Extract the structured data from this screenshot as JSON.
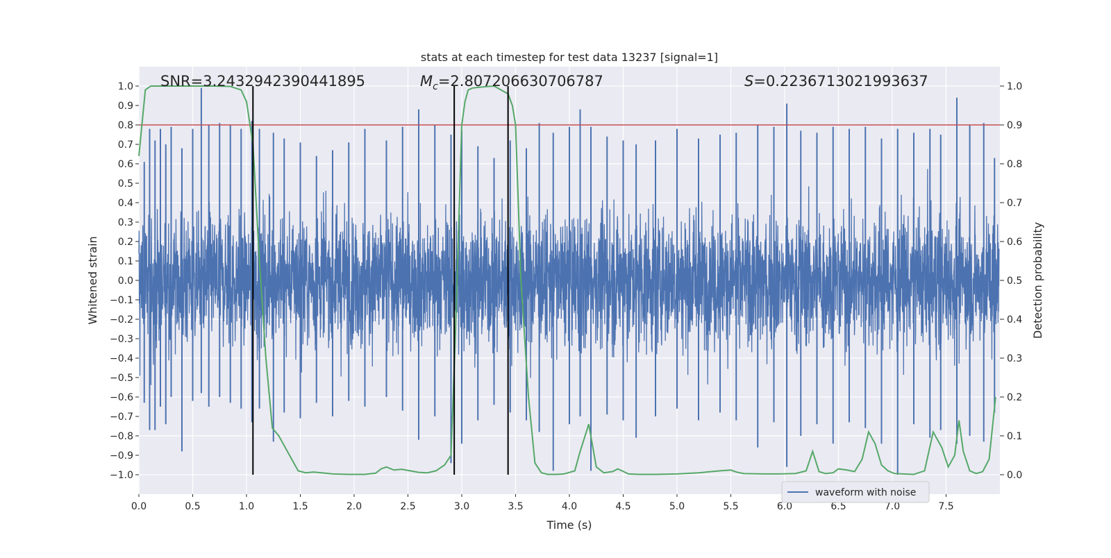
{
  "chart_data": {
    "type": "line",
    "title": "stats at each timestep for test data 13237 [signal=1]",
    "xlabel": "Time (s)",
    "ylabel_left": "Whitened strain",
    "ylabel_right": "Detection probability",
    "xlim": [
      0.0,
      8.0
    ],
    "ylim_left": [
      -1.1,
      1.1
    ],
    "ylim_right": [
      -0.05,
      1.05
    ],
    "x_ticks": [
      0.0,
      0.5,
      1.0,
      1.5,
      2.0,
      2.5,
      3.0,
      3.5,
      4.0,
      4.5,
      5.0,
      5.5,
      6.0,
      6.5,
      7.0,
      7.5
    ],
    "x_tick_labels": [
      "0.0",
      "0.5",
      "1.0",
      "1.5",
      "2.0",
      "2.5",
      "3.0",
      "3.5",
      "4.0",
      "4.5",
      "5.0",
      "5.5",
      "6.0",
      "6.5",
      "7.0",
      "7.5"
    ],
    "y_left_ticks": [
      1.0,
      0.9,
      0.8,
      0.7,
      0.6,
      0.5,
      0.4,
      0.3,
      0.2,
      0.1,
      0.0,
      -0.1,
      -0.2,
      -0.3,
      -0.4,
      -0.5,
      -0.6,
      -0.7,
      -0.8,
      -0.9,
      -1.0
    ],
    "y_left_tick_labels": [
      "1.0",
      "0.9",
      "0.8",
      "0.7",
      "0.6",
      "0.5",
      "0.4",
      "0.3",
      "0.2",
      "0.1",
      "0.0",
      "−0.1",
      "−0.2",
      "−0.3",
      "−0.4",
      "−0.5",
      "−0.6",
      "−0.7",
      "−0.8",
      "−0.9",
      "−1.0"
    ],
    "y_right_ticks": [
      1.0,
      0.9,
      0.8,
      0.7,
      0.6,
      0.5,
      0.4,
      0.3,
      0.2,
      0.1,
      0.0
    ],
    "y_right_tick_labels": [
      "1.0",
      "0.9",
      "0.8",
      "0.7",
      "0.6",
      "0.5",
      "0.4",
      "0.3",
      "0.2",
      "0.1",
      "0.0"
    ],
    "annotations": {
      "snr": "SNR=3.2432942390441895",
      "mc_symbol": "M",
      "mc_subscript": "c",
      "mc_value": "=2.807206630706787",
      "s_symbol": "S",
      "s_value": "=0.2236713021993637"
    },
    "threshold": {
      "axis": "right",
      "value": 0.9,
      "color": "#c44e52"
    },
    "vertical_lines": [
      1.06,
      2.93,
      3.43
    ],
    "legend": {
      "label": "waveform with noise",
      "location": "lower-right"
    },
    "series": [
      {
        "name": "waveform with noise",
        "axis": "left",
        "color": "#4c72b0",
        "style": "dense noisy waveform spanning the full time range",
        "typical_envelope": 0.45,
        "spikes": [
          [
            0.05,
            0.61,
            -0.63
          ],
          [
            0.1,
            0.78,
            -0.77
          ],
          [
            0.15,
            0.72,
            -0.77
          ],
          [
            0.2,
            0.78,
            -0.65
          ],
          [
            0.25,
            0.7,
            -0.74
          ],
          [
            0.3,
            0.79,
            -0.6
          ],
          [
            0.4,
            0.68,
            -0.88
          ],
          [
            0.5,
            0.78,
            -0.62
          ],
          [
            0.58,
            0.99,
            -0.58
          ],
          [
            0.65,
            0.8,
            -0.65
          ],
          [
            0.75,
            0.81,
            -0.6
          ],
          [
            0.85,
            0.8,
            -0.63
          ],
          [
            0.95,
            0.78,
            -0.66
          ],
          [
            1.05,
            0.82,
            -0.73
          ],
          [
            1.12,
            0.78,
            -0.66
          ],
          [
            1.25,
            0.76,
            -0.83
          ],
          [
            1.35,
            0.73,
            -0.68
          ],
          [
            1.5,
            0.71,
            -0.71
          ],
          [
            1.65,
            0.64,
            -0.63
          ],
          [
            1.8,
            0.67,
            -0.7
          ],
          [
            1.95,
            0.71,
            -0.62
          ],
          [
            2.1,
            0.78,
            -0.65
          ],
          [
            2.3,
            0.72,
            -0.6
          ],
          [
            2.45,
            0.79,
            -0.67
          ],
          [
            2.6,
            0.88,
            -0.82
          ],
          [
            2.75,
            0.8,
            -0.7
          ],
          [
            2.9,
            0.75,
            -0.94
          ],
          [
            3.0,
            0.77,
            -0.84
          ],
          [
            3.15,
            0.69,
            -0.72
          ],
          [
            3.3,
            0.63,
            -0.64
          ],
          [
            3.45,
            0.72,
            -0.68
          ],
          [
            3.6,
            0.68,
            -0.72
          ],
          [
            3.72,
            0.81,
            -0.78
          ],
          [
            3.85,
            0.76,
            -0.98
          ],
          [
            4.0,
            0.79,
            -0.74
          ],
          [
            4.1,
            0.88,
            -0.7
          ],
          [
            4.2,
            0.79,
            -0.98
          ],
          [
            4.35,
            0.74,
            -0.69
          ],
          [
            4.5,
            0.72,
            -0.72
          ],
          [
            4.62,
            0.7,
            -0.81
          ],
          [
            4.8,
            0.72,
            -0.7
          ],
          [
            5.0,
            0.78,
            -0.66
          ],
          [
            5.2,
            0.73,
            -0.72
          ],
          [
            5.4,
            0.75,
            -0.68
          ],
          [
            5.55,
            0.76,
            -0.72
          ],
          [
            5.75,
            0.8,
            -0.86
          ],
          [
            5.9,
            0.79,
            -0.73
          ],
          [
            6.02,
            0.91,
            -0.96
          ],
          [
            6.15,
            0.77,
            -0.8
          ],
          [
            6.3,
            0.76,
            -0.74
          ],
          [
            6.45,
            0.79,
            -0.84
          ],
          [
            6.6,
            0.78,
            -0.73
          ],
          [
            6.75,
            0.79,
            -0.76
          ],
          [
            6.9,
            0.73,
            -0.84
          ],
          [
            7.05,
            0.78,
            -1.0
          ],
          [
            7.2,
            0.76,
            -0.74
          ],
          [
            7.35,
            0.78,
            -0.81
          ],
          [
            7.45,
            0.75,
            -0.77
          ],
          [
            7.6,
            0.94,
            -0.84
          ],
          [
            7.72,
            0.8,
            -0.8
          ],
          [
            7.85,
            0.81,
            -0.83
          ],
          [
            7.95,
            0.63,
            -0.68
          ]
        ]
      },
      {
        "name": "Detection probability",
        "axis": "right",
        "color": "#55a868",
        "x": [
          0.0,
          0.06,
          0.11,
          0.2,
          0.3,
          0.5,
          0.7,
          0.85,
          0.95,
          1.0,
          1.06,
          1.12,
          1.18,
          1.24,
          1.3,
          1.36,
          1.42,
          1.48,
          1.55,
          1.62,
          1.7,
          1.8,
          1.95,
          2.1,
          2.2,
          2.25,
          2.3,
          2.37,
          2.44,
          2.52,
          2.6,
          2.68,
          2.76,
          2.84,
          2.9,
          2.94,
          3.0,
          3.03,
          3.06,
          3.1,
          3.2,
          3.3,
          3.43,
          3.47,
          3.5,
          3.55,
          3.62,
          3.68,
          3.74,
          3.8,
          3.88,
          3.95,
          4.05,
          4.1,
          4.18,
          4.25,
          4.32,
          4.4,
          4.45,
          4.55,
          4.65,
          4.8,
          5.0,
          5.2,
          5.4,
          5.5,
          5.55,
          5.62,
          5.8,
          5.95,
          6.1,
          6.2,
          6.26,
          6.32,
          6.38,
          6.45,
          6.5,
          6.58,
          6.65,
          6.72,
          6.78,
          6.84,
          6.9,
          6.96,
          7.02,
          7.1,
          7.2,
          7.3,
          7.38,
          7.46,
          7.52,
          7.58,
          7.62,
          7.66,
          7.72,
          7.78,
          7.84,
          7.9,
          7.96
        ],
        "y": [
          0.82,
          0.99,
          1.0,
          1.0,
          1.0,
          1.0,
          1.0,
          0.999,
          0.99,
          0.96,
          0.85,
          0.55,
          0.3,
          0.12,
          0.1,
          0.07,
          0.04,
          0.01,
          0.005,
          0.007,
          0.005,
          0.002,
          0.001,
          0.001,
          0.004,
          0.015,
          0.02,
          0.012,
          0.014,
          0.01,
          0.006,
          0.005,
          0.01,
          0.025,
          0.05,
          0.35,
          0.9,
          0.96,
          0.99,
          0.995,
          0.998,
          1.0,
          0.98,
          0.95,
          0.9,
          0.5,
          0.2,
          0.03,
          0.005,
          0.001,
          0.001,
          0.002,
          0.01,
          0.06,
          0.13,
          0.02,
          0.005,
          0.008,
          0.015,
          0.002,
          0.001,
          0.001,
          0.002,
          0.005,
          0.01,
          0.012,
          0.007,
          0.003,
          0.002,
          0.002,
          0.003,
          0.01,
          0.06,
          0.008,
          0.003,
          0.005,
          0.015,
          0.012,
          0.008,
          0.04,
          0.11,
          0.08,
          0.025,
          0.01,
          0.003,
          0.002,
          0.001,
          0.01,
          0.11,
          0.07,
          0.02,
          0.05,
          0.14,
          0.06,
          0.01,
          0.003,
          0.008,
          0.04,
          0.2
        ]
      }
    ]
  }
}
